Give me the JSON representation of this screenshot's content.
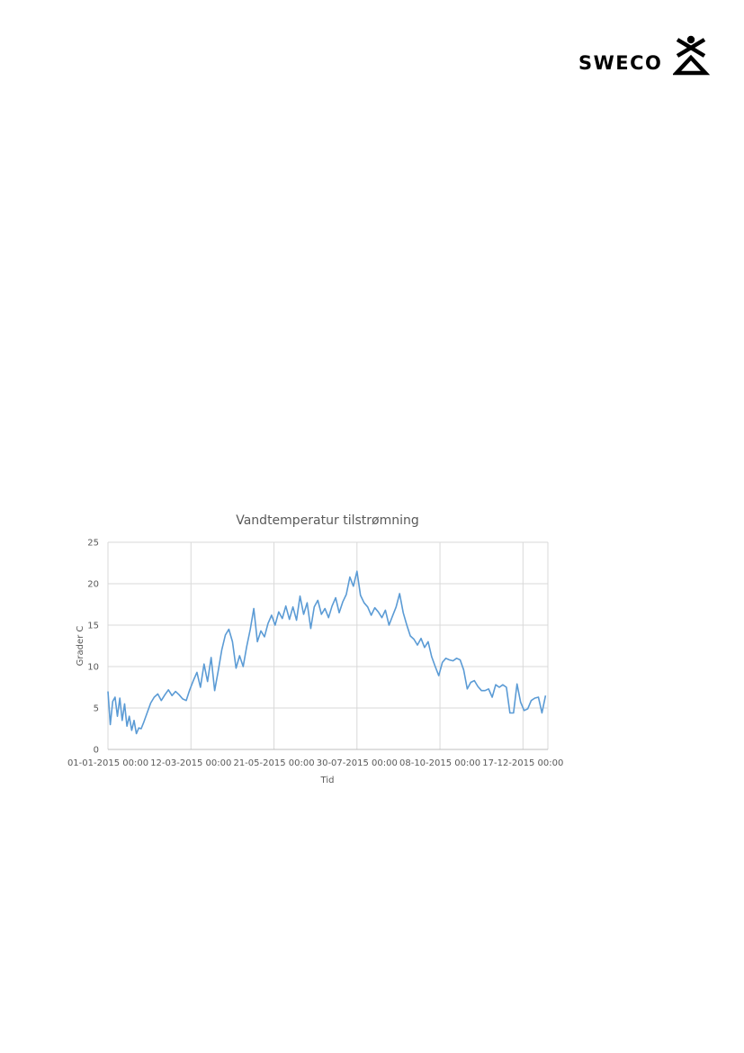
{
  "logo": {
    "text": "SWECO",
    "mark": "sweco-logo-mark"
  },
  "colors": {
    "series": "#5B9BD5",
    "grid": "#D9D9D9",
    "text": "#595959"
  },
  "chart_data": {
    "type": "line",
    "title": "Vandtemperatur tilstrømning",
    "xlabel": "Tid",
    "ylabel": "Grader C",
    "ylim": [
      0,
      25
    ],
    "yticks": [
      "0",
      "5",
      "10",
      "15",
      "20",
      "25"
    ],
    "xlim": [
      "2015-01-01",
      "2016-01-07"
    ],
    "xticks": [
      "01-01-2015 00:00",
      "12-03-2015 00:00",
      "21-05-2015 00:00",
      "30-07-2015 00:00",
      "08-10-2015 00:00",
      "17-12-2015 00:00"
    ],
    "grid": true,
    "legend": "none",
    "series": [
      {
        "x": [
          "2015-01-01",
          "2015-01-03",
          "2015-01-05",
          "2015-01-07",
          "2015-01-09",
          "2015-01-11",
          "2015-01-13",
          "2015-01-15",
          "2015-01-17",
          "2015-01-19",
          "2015-01-21",
          "2015-01-23",
          "2015-01-25",
          "2015-01-27",
          "2015-01-29",
          "2015-01-31",
          "2015-02-03",
          "2015-02-06",
          "2015-02-09",
          "2015-02-12",
          "2015-02-15",
          "2015-02-18",
          "2015-02-21",
          "2015-02-24",
          "2015-02-27",
          "2015-03-02",
          "2015-03-05",
          "2015-03-08",
          "2015-03-11",
          "2015-03-14",
          "2015-03-17",
          "2015-03-20",
          "2015-03-23",
          "2015-03-26",
          "2015-03-29",
          "2015-04-01",
          "2015-04-04",
          "2015-04-07",
          "2015-04-10",
          "2015-04-13",
          "2015-04-16",
          "2015-04-19",
          "2015-04-22",
          "2015-04-25",
          "2015-04-28",
          "2015-05-01",
          "2015-05-04",
          "2015-05-07",
          "2015-05-10",
          "2015-05-13",
          "2015-05-16",
          "2015-05-19",
          "2015-05-22",
          "2015-05-25",
          "2015-05-28",
          "2015-05-31",
          "2015-06-03",
          "2015-06-06",
          "2015-06-09",
          "2015-06-12",
          "2015-06-15",
          "2015-06-18",
          "2015-06-21",
          "2015-06-24",
          "2015-06-27",
          "2015-06-30",
          "2015-07-03",
          "2015-07-06",
          "2015-07-09",
          "2015-07-12",
          "2015-07-15",
          "2015-07-18",
          "2015-07-21",
          "2015-07-24",
          "2015-07-27",
          "2015-07-30",
          "2015-08-02",
          "2015-08-05",
          "2015-08-08",
          "2015-08-11",
          "2015-08-14",
          "2015-08-17",
          "2015-08-20",
          "2015-08-23",
          "2015-08-26",
          "2015-08-29",
          "2015-09-01",
          "2015-09-04",
          "2015-09-07",
          "2015-09-10",
          "2015-09-13",
          "2015-09-16",
          "2015-09-19",
          "2015-09-22",
          "2015-09-25",
          "2015-09-28",
          "2015-10-01",
          "2015-10-04",
          "2015-10-07",
          "2015-10-10",
          "2015-10-13",
          "2015-10-16",
          "2015-10-19",
          "2015-10-22",
          "2015-10-25",
          "2015-10-28",
          "2015-10-31",
          "2015-11-03",
          "2015-11-06",
          "2015-11-09",
          "2015-11-12",
          "2015-11-15",
          "2015-11-18",
          "2015-11-21",
          "2015-11-24",
          "2015-11-27",
          "2015-11-30",
          "2015-12-03",
          "2015-12-06",
          "2015-12-09",
          "2015-12-12",
          "2015-12-15",
          "2015-12-18",
          "2015-12-21",
          "2015-12-24",
          "2015-12-27",
          "2015-12-30",
          "2016-01-02",
          "2016-01-05"
        ],
        "values": [
          7.0,
          3.0,
          5.8,
          6.3,
          4.0,
          6.2,
          3.5,
          5.5,
          2.8,
          4.0,
          2.3,
          3.5,
          1.9,
          2.6,
          2.5,
          3.2,
          4.4,
          5.6,
          6.3,
          6.7,
          5.9,
          6.6,
          7.2,
          6.5,
          7.0,
          6.6,
          6.1,
          5.9,
          7.2,
          8.3,
          9.3,
          7.5,
          10.3,
          8.2,
          11.1,
          7.1,
          9.5,
          12.0,
          13.8,
          14.5,
          13.0,
          9.8,
          11.3,
          10.0,
          12.4,
          14.5,
          17.0,
          13.0,
          14.3,
          13.6,
          15.2,
          16.2,
          15.0,
          16.6,
          15.8,
          17.3,
          15.7,
          17.2,
          15.6,
          18.5,
          16.3,
          17.7,
          14.6,
          17.2,
          18.0,
          16.3,
          17.0,
          15.9,
          17.3,
          18.3,
          16.5,
          17.8,
          18.7,
          20.8,
          19.7,
          21.5,
          18.6,
          17.7,
          17.2,
          16.2,
          17.1,
          16.6,
          15.9,
          16.8,
          15.0,
          16.1,
          17.2,
          18.8,
          16.5,
          15.0,
          13.7,
          13.3,
          12.6,
          13.4,
          12.3,
          13.0,
          11.2,
          10.0,
          8.9,
          10.5,
          11.0,
          10.8,
          10.7,
          11.0,
          10.8,
          9.6,
          7.3,
          8.1,
          8.3,
          7.6,
          7.1,
          7.1,
          7.3,
          6.3,
          7.8,
          7.5,
          7.8,
          7.5,
          4.4,
          4.4,
          7.9,
          5.7,
          4.7,
          4.9,
          5.9,
          6.2,
          6.3,
          4.4,
          6.5
        ]
      }
    ]
  }
}
